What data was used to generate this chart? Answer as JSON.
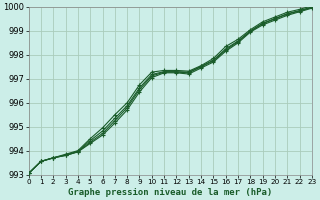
{
  "title": "Graphe pression niveau de la mer (hPa)",
  "background_color": "#cceee8",
  "grid_color": "#aaccbb",
  "line_color": "#1a5c2a",
  "ylim": [
    993,
    1000
  ],
  "xlim": [
    0,
    23
  ],
  "yticks": [
    993,
    994,
    995,
    996,
    997,
    998,
    999,
    1000
  ],
  "xticks": [
    0,
    1,
    2,
    3,
    4,
    5,
    6,
    7,
    8,
    9,
    10,
    11,
    12,
    13,
    14,
    15,
    16,
    17,
    18,
    19,
    20,
    21,
    22,
    23
  ],
  "series": [
    [
      993.05,
      993.55,
      993.7,
      993.8,
      993.95,
      994.3,
      994.65,
      995.15,
      995.7,
      996.45,
      997.05,
      997.25,
      997.25,
      997.2,
      997.45,
      997.7,
      998.15,
      998.5,
      998.95,
      999.25,
      999.45,
      999.65,
      999.8,
      999.95
    ],
    [
      993.05,
      993.55,
      993.7,
      993.8,
      993.95,
      994.35,
      994.72,
      995.25,
      995.8,
      996.55,
      997.12,
      997.28,
      997.28,
      997.25,
      997.5,
      997.75,
      998.2,
      998.55,
      998.98,
      999.3,
      999.5,
      999.7,
      999.83,
      999.98
    ],
    [
      993.05,
      993.55,
      993.7,
      993.82,
      993.97,
      994.42,
      994.82,
      995.35,
      995.88,
      996.62,
      997.18,
      997.3,
      997.3,
      997.28,
      997.52,
      997.78,
      998.25,
      998.58,
      999.0,
      999.32,
      999.52,
      999.72,
      999.85,
      1000.0
    ],
    [
      993.05,
      993.55,
      993.7,
      993.85,
      994.0,
      994.5,
      994.95,
      995.5,
      996.0,
      996.75,
      997.28,
      997.35,
      997.35,
      997.32,
      997.55,
      997.85,
      998.35,
      998.65,
      999.05,
      999.38,
      999.58,
      999.78,
      999.9,
      1000.05
    ]
  ]
}
